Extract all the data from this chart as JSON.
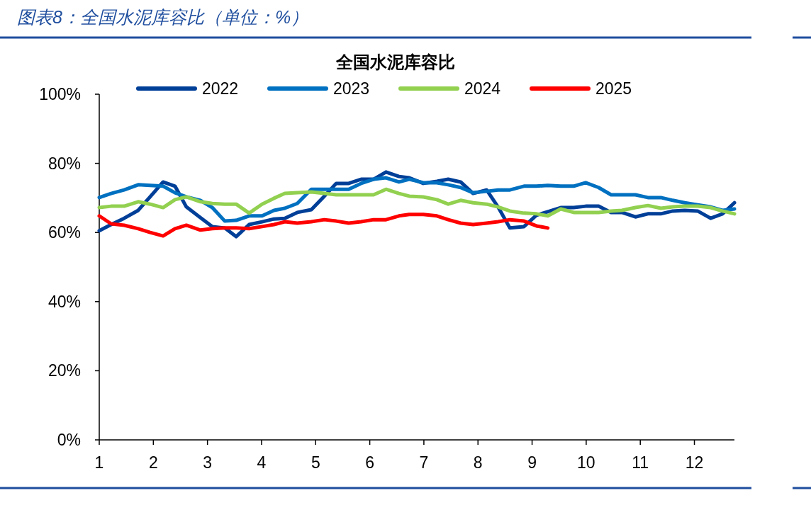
{
  "chart_data": {
    "type": "line",
    "title": "图表8：全国水泥库容比（单位：%）",
    "subtitle": "全国水泥库容比",
    "x": [
      1.0,
      1.22,
      1.46,
      1.72,
      1.94,
      2.18,
      2.4,
      2.61,
      2.87,
      3.09,
      3.32,
      3.53,
      3.77,
      4.01,
      4.23,
      4.43,
      4.66,
      4.92,
      5.16,
      5.38,
      5.61,
      5.84,
      6.07,
      6.3,
      6.54,
      6.73,
      6.99,
      7.24,
      7.45,
      7.68,
      7.91,
      8.16,
      8.37,
      8.59,
      8.85,
      9.08,
      9.29,
      9.53,
      9.77,
      9.99,
      10.23,
      10.46,
      10.66,
      10.91,
      11.14,
      11.38,
      11.6,
      11.82,
      12.06,
      12.3,
      12.52,
      12.74
    ],
    "series": [
      {
        "name": "2022",
        "color": "#003f98",
        "values": [
          60.5,
          62.3,
          64.1,
          66.4,
          70.3,
          74.6,
          73.4,
          67.4,
          64.3,
          61.7,
          61.3,
          58.8,
          62.3,
          63.1,
          63.9,
          64.1,
          65.8,
          66.6,
          70.5,
          74.2,
          74.2,
          75.4,
          75.4,
          77.5,
          76.2,
          75.8,
          74.2,
          74.8,
          75.4,
          74.6,
          71.3,
          72.3,
          67.4,
          61.3,
          61.7,
          65.0,
          66.0,
          67.2,
          67.2,
          67.6,
          67.6,
          65.8,
          65.8,
          64.5,
          65.4,
          65.4,
          66.2,
          66.4,
          66.2,
          64.1,
          65.4,
          68.6
        ]
      },
      {
        "name": "2023",
        "color": "#0070c0",
        "values": [
          70.1,
          71.3,
          72.3,
          73.8,
          73.6,
          73.4,
          71.5,
          70.3,
          69.3,
          67.2,
          63.3,
          63.5,
          64.8,
          64.8,
          66.4,
          67.0,
          68.4,
          72.5,
          72.5,
          72.5,
          72.5,
          74.2,
          75.4,
          75.8,
          74.6,
          75.4,
          74.4,
          74.4,
          73.8,
          73.0,
          71.5,
          71.9,
          72.3,
          72.3,
          73.4,
          73.4,
          73.6,
          73.4,
          73.4,
          74.4,
          73.0,
          70.9,
          70.9,
          70.9,
          70.1,
          70.1,
          69.3,
          68.6,
          68.0,
          67.4,
          66.4,
          66.8
        ]
      },
      {
        "name": "2024",
        "color": "#92d050",
        "values": [
          67.2,
          67.6,
          67.6,
          68.9,
          68.2,
          67.2,
          69.5,
          70.3,
          68.9,
          68.4,
          68.2,
          68.2,
          65.6,
          68.2,
          69.9,
          71.3,
          71.5,
          71.7,
          71.3,
          70.9,
          70.9,
          70.9,
          70.9,
          72.5,
          71.3,
          70.5,
          70.3,
          69.5,
          68.2,
          69.3,
          68.6,
          68.2,
          67.4,
          66.2,
          65.6,
          65.4,
          64.8,
          66.8,
          65.8,
          65.8,
          65.8,
          66.2,
          66.4,
          67.2,
          67.8,
          67.0,
          67.4,
          67.6,
          67.6,
          67.2,
          66.2,
          65.4
        ]
      },
      {
        "name": "2025",
        "color": "#ff0000",
        "values": [
          64.8,
          62.5,
          62.1,
          61.1,
          60.0,
          59.0,
          61.1,
          62.1,
          60.7,
          61.1,
          61.3,
          61.3,
          61.1,
          61.7,
          62.3,
          63.1,
          62.7,
          63.1,
          63.7,
          63.3,
          62.7,
          63.1,
          63.7,
          63.7,
          64.8,
          65.2,
          65.2,
          64.8,
          63.7,
          62.7,
          62.3,
          62.7,
          63.1,
          63.7,
          63.3,
          61.9,
          61.3,
          null,
          null,
          null,
          null,
          null,
          null,
          null,
          null,
          null,
          null,
          null,
          null,
          null,
          null,
          null
        ]
      }
    ],
    "xlim": [
      1,
      12.74
    ],
    "xticks": [
      1,
      2,
      3,
      4,
      5,
      6,
      7,
      8,
      9,
      10,
      11,
      12
    ],
    "ylim": [
      0,
      100
    ],
    "yticks": [
      {
        "value": 0,
        "label": "0%"
      },
      {
        "value": 20,
        "label": "20%"
      },
      {
        "value": 40,
        "label": "40%"
      },
      {
        "value": 60,
        "label": "60%"
      },
      {
        "value": 80,
        "label": "80%"
      },
      {
        "value": 100,
        "label": "100%"
      }
    ],
    "legend": "top",
    "grid": false,
    "marker": "none",
    "line_style": "solid"
  }
}
